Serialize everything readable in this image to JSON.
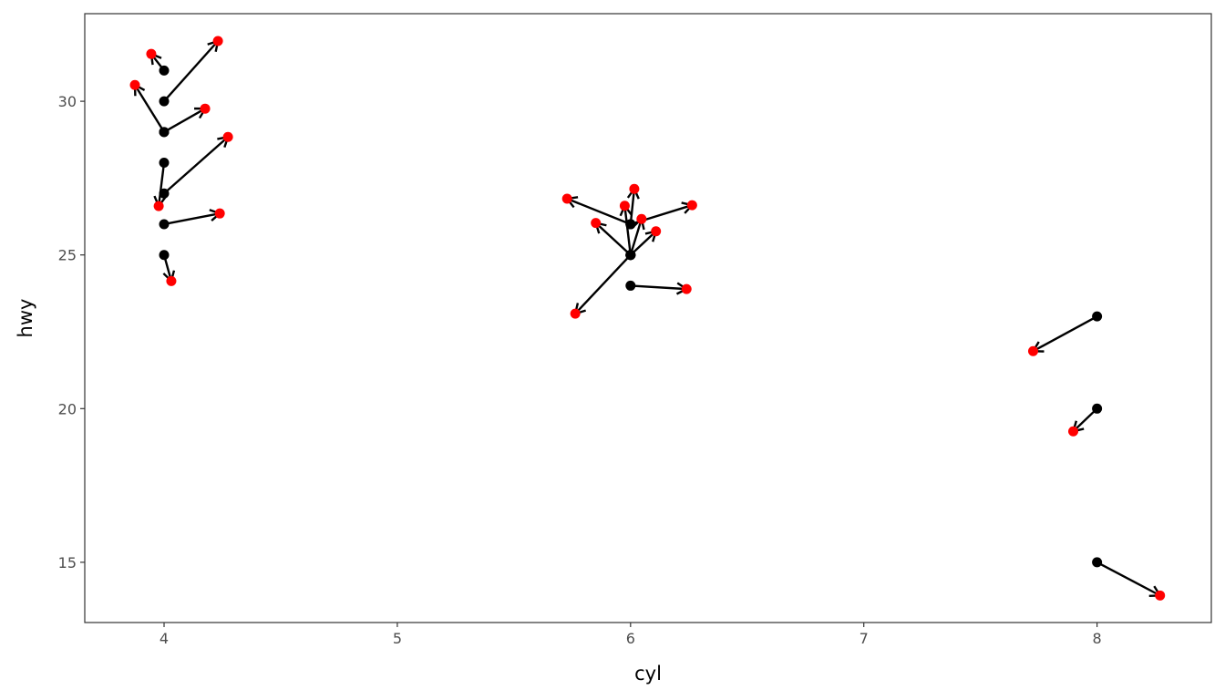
{
  "chart_data": {
    "type": "scatter",
    "xlabel": "cyl",
    "ylabel": "hwy",
    "xlim": [
      3.66,
      8.49
    ],
    "ylim": [
      13.04,
      32.85
    ],
    "xticks": [
      4,
      5,
      6,
      7,
      8
    ],
    "yticks": [
      15,
      20,
      25,
      30
    ],
    "grid": false,
    "point_color": "#000000",
    "jittered_color": "#ff0000",
    "segments": [
      {
        "from": [
          4,
          31
        ],
        "to": [
          3.945,
          31.54
        ]
      },
      {
        "from": [
          4,
          30
        ],
        "to": [
          4.231,
          31.96
        ]
      },
      {
        "from": [
          4,
          29
        ],
        "to": [
          3.875,
          30.53
        ]
      },
      {
        "from": [
          4,
          29
        ],
        "to": [
          4.176,
          29.76
        ]
      },
      {
        "from": [
          4,
          28
        ],
        "to": [
          3.977,
          26.59
        ]
      },
      {
        "from": [
          4,
          27
        ],
        "to": [
          4.274,
          28.84
        ]
      },
      {
        "from": [
          4,
          26
        ],
        "to": [
          4.239,
          26.35
        ]
      },
      {
        "from": [
          4,
          25
        ],
        "to": [
          4.031,
          24.15
        ]
      },
      {
        "from": [
          6,
          25
        ],
        "to": [
          5.763,
          23.09
        ]
      },
      {
        "from": [
          6,
          25
        ],
        "to": [
          5.851,
          26.04
        ]
      },
      {
        "from": [
          6,
          25
        ],
        "to": [
          6.109,
          25.77
        ]
      },
      {
        "from": [
          6,
          25
        ],
        "to": [
          5.975,
          26.6
        ]
      },
      {
        "from": [
          6,
          25
        ],
        "to": [
          6.047,
          26.17
        ]
      },
      {
        "from": [
          6,
          26
        ],
        "to": [
          5.728,
          26.83
        ]
      },
      {
        "from": [
          6,
          26
        ],
        "to": [
          6.016,
          27.15
        ]
      },
      {
        "from": [
          6,
          26
        ],
        "to": [
          6.264,
          26.62
        ]
      },
      {
        "from": [
          6,
          24
        ],
        "to": [
          6.24,
          23.89
        ]
      },
      {
        "from": [
          8,
          23
        ],
        "to": [
          7.726,
          21.87
        ]
      },
      {
        "from": [
          8,
          20
        ],
        "to": [
          7.898,
          19.26
        ]
      },
      {
        "from": [
          8,
          15
        ],
        "to": [
          8.27,
          13.92
        ]
      }
    ]
  }
}
